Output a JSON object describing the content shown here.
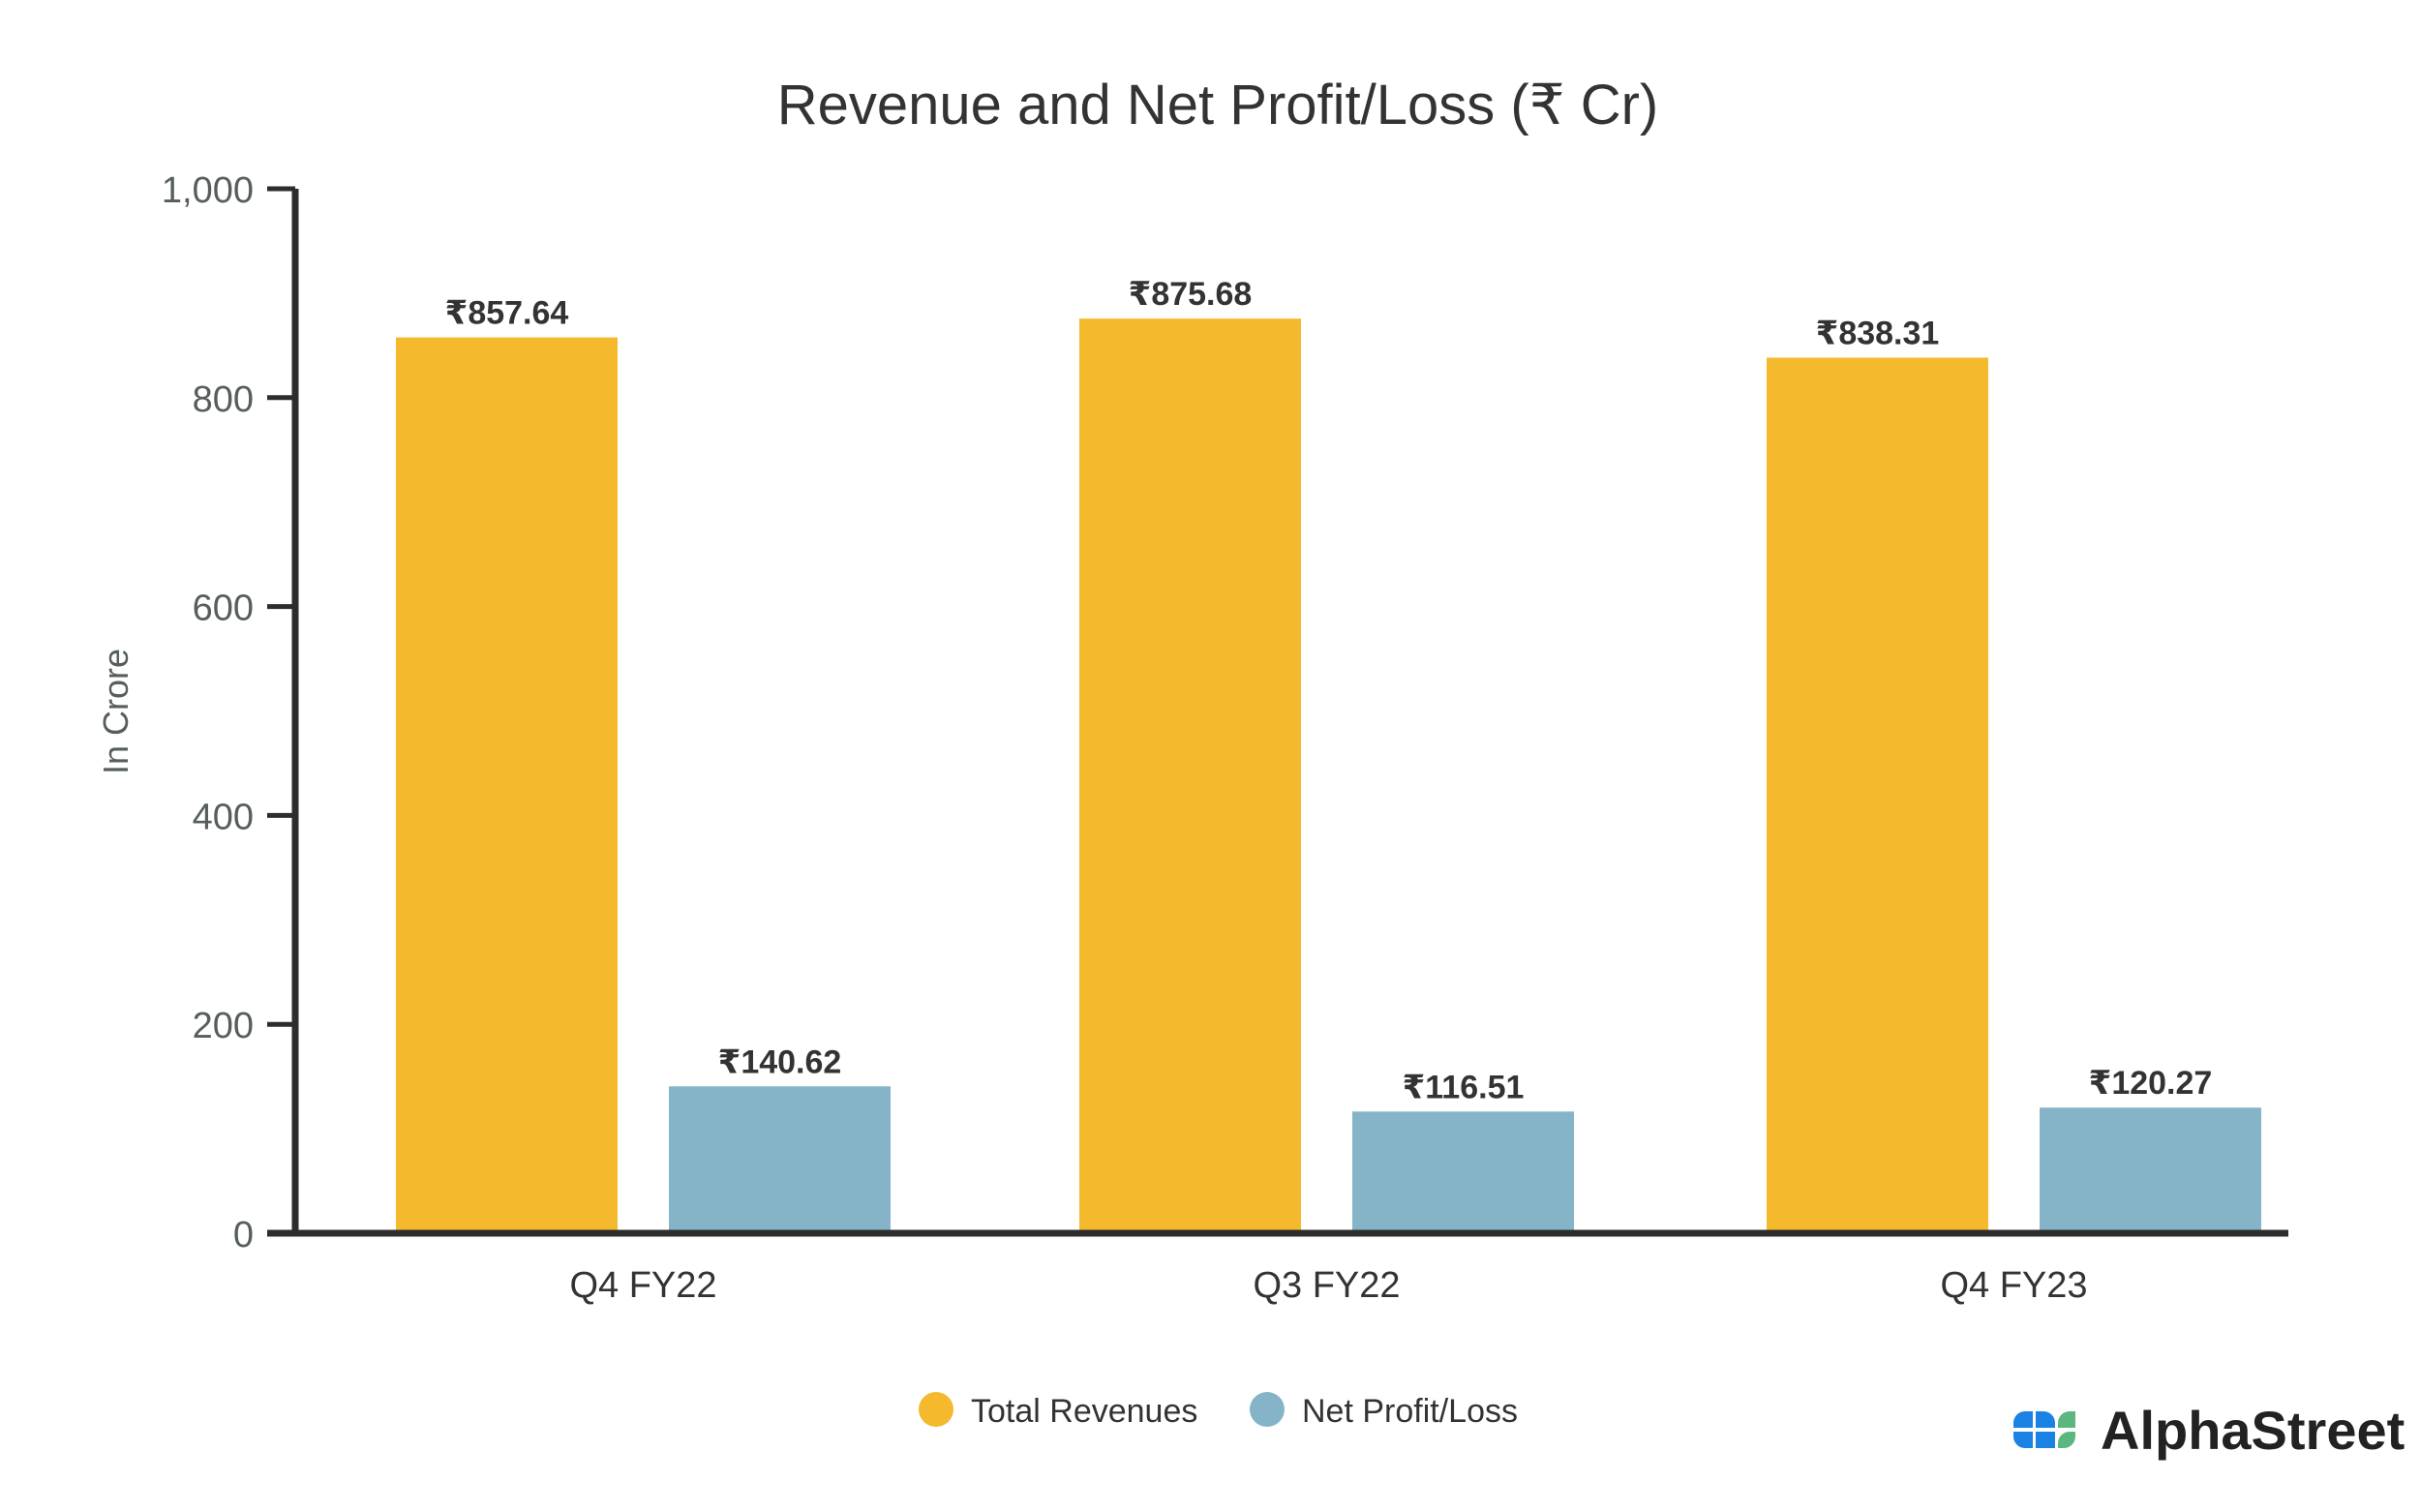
{
  "chart_data": {
    "type": "bar",
    "title": "Revenue and Net Profit/Loss (₹ Cr)",
    "xlabel": "",
    "ylabel": "In Crore",
    "ylim": [
      0,
      1000
    ],
    "yticks": [
      0,
      200,
      400,
      600,
      800,
      1000
    ],
    "ytick_labels": [
      "0",
      "200",
      "400",
      "600",
      "800",
      "1,000"
    ],
    "categories": [
      "Q4 FY22",
      "Q3 FY22",
      "Q4 FY23"
    ],
    "series": [
      {
        "name": "Total Revenues",
        "color": "#F5B92E",
        "values": [
          857.64,
          875.68,
          838.31
        ],
        "labels": [
          "₹857.64",
          "₹875.68",
          "₹838.31"
        ]
      },
      {
        "name": "Net Profit/Loss",
        "color": "#85B4C9",
        "values": [
          140.62,
          116.51,
          120.27
        ],
        "labels": [
          "₹140.62",
          "₹116.51",
          "₹120.27"
        ]
      }
    ],
    "grid": false,
    "legend_position": "bottom-center"
  },
  "brand": {
    "name": "AlphaStreet"
  }
}
